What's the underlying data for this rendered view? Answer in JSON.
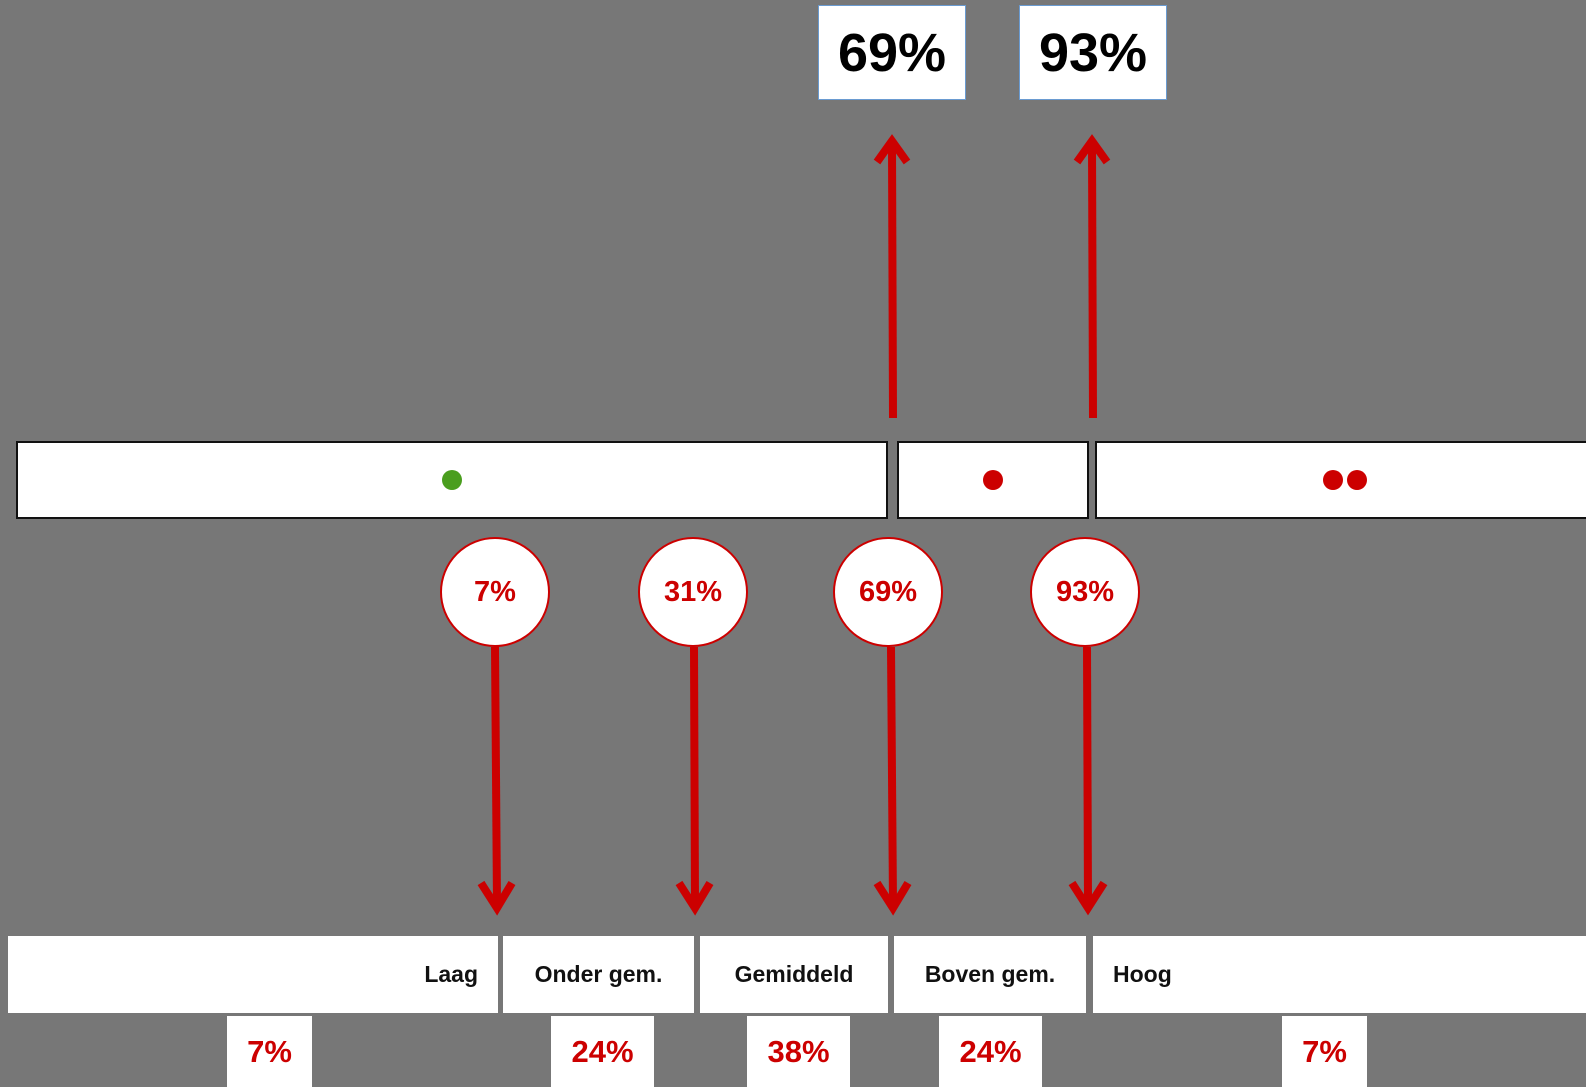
{
  "thresholds": {
    "top_labels": [
      "69%",
      "93%"
    ],
    "circle_labels": [
      "7%",
      "31%",
      "69%",
      "93%"
    ]
  },
  "bands": [
    {
      "dots": 1,
      "dot_color": "#4a9e1e"
    },
    {
      "dots": 1,
      "dot_color": "#cc0000"
    },
    {
      "dots": 2,
      "dot_color": "#cc0000"
    }
  ],
  "categories": [
    {
      "label": "Laag",
      "share": "7%"
    },
    {
      "label": "Onder gem.",
      "share": "24%"
    },
    {
      "label": "Gemiddeld",
      "share": "38%"
    },
    {
      "label": "Boven gem.",
      "share": "24%"
    },
    {
      "label": "Hoog",
      "share": "7%"
    }
  ],
  "colors": {
    "background": "#777777",
    "accent": "#cc0000",
    "box": "#ffffff",
    "green": "#4a9e1e"
  }
}
